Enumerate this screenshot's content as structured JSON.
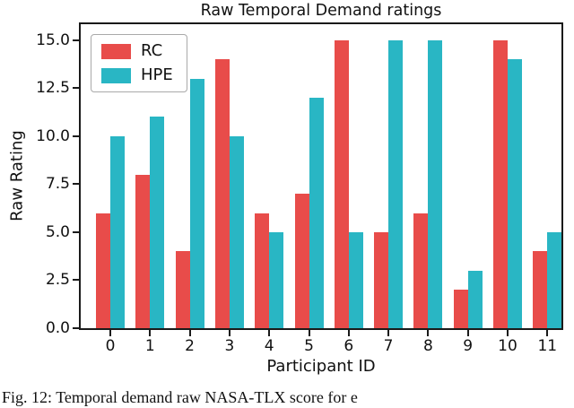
{
  "figure": {
    "caption": "Fig. 12: Temporal demand raw NASA-TLX score for e"
  },
  "chart_data": {
    "type": "bar",
    "title": "Raw Temporal Demand ratings",
    "xlabel": "Participant ID",
    "ylabel": "Raw Rating",
    "categories": [
      "0",
      "1",
      "2",
      "3",
      "4",
      "5",
      "6",
      "7",
      "8",
      "9",
      "10",
      "11"
    ],
    "series": [
      {
        "name": "RC",
        "color": "#e84c4a",
        "values": [
          6,
          8,
          4,
          14,
          6,
          7,
          15,
          5,
          6,
          2,
          15,
          4
        ]
      },
      {
        "name": "HPE",
        "color": "#29b6c4",
        "values": [
          10,
          11,
          13,
          10,
          5,
          12,
          5,
          15,
          15,
          3,
          14,
          5
        ]
      }
    ],
    "ylim": [
      0,
      15.83
    ],
    "yticks": {
      "values": [
        0,
        2.5,
        5,
        7.5,
        10,
        12.5,
        15
      ],
      "labels": [
        "0.0",
        "2.5",
        "5.0",
        "7.5",
        "10.0",
        "12.5",
        "15.0"
      ]
    },
    "grid": false,
    "legend_position": "upper left"
  }
}
